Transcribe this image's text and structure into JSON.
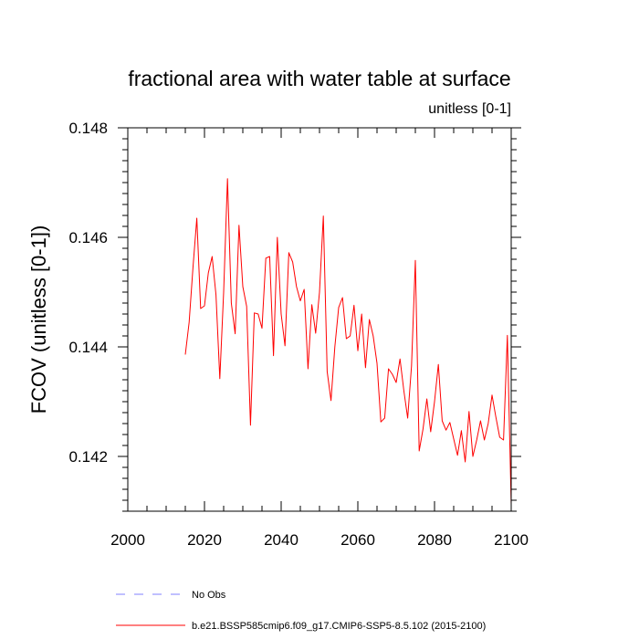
{
  "chart_data": {
    "type": "line",
    "title": "fractional area with water table at surface",
    "units_label": "unitless [0-1]",
    "xlabel": "",
    "ylabel": "FCOV  (unitless [0-1])",
    "xlim": [
      2000,
      2100
    ],
    "ylim": [
      0.141,
      0.148
    ],
    "x_ticks": [
      2000,
      2020,
      2040,
      2060,
      2080,
      2100
    ],
    "y_ticks": [
      0.142,
      0.144,
      0.146,
      0.148
    ],
    "x_tick_labels": [
      "2000",
      "2020",
      "2040",
      "2060",
      "2080",
      "2100"
    ],
    "y_tick_labels": [
      "0.142",
      "0.144",
      "0.146",
      "0.148"
    ],
    "grid": false,
    "legend_position": "bottom",
    "series": [
      {
        "name": "No Obs",
        "color": "#8080ff",
        "style": "dashed",
        "x": [],
        "values": []
      },
      {
        "name": "b.e21.BSSP585cmip6.f09_g17.CMIP6-SSP5-8.5.102 (2015-2100)",
        "color": "#ff0000",
        "style": "solid",
        "x": [
          2015,
          2016,
          2017,
          2018,
          2019,
          2020,
          2021,
          2022,
          2023,
          2024,
          2025,
          2026,
          2027,
          2028,
          2029,
          2030,
          2031,
          2032,
          2033,
          2034,
          2035,
          2036,
          2037,
          2038,
          2039,
          2040,
          2041,
          2042,
          2043,
          2044,
          2045,
          2046,
          2047,
          2048,
          2049,
          2050,
          2051,
          2052,
          2053,
          2054,
          2055,
          2056,
          2057,
          2058,
          2059,
          2060,
          2061,
          2062,
          2063,
          2064,
          2065,
          2066,
          2067,
          2068,
          2069,
          2070,
          2071,
          2072,
          2073,
          2074,
          2075,
          2076,
          2077,
          2078,
          2079,
          2080,
          2081,
          2082,
          2083,
          2084,
          2085,
          2086,
          2087,
          2088,
          2089,
          2090,
          2091,
          2092,
          2093,
          2094,
          2095,
          2096,
          2097,
          2098,
          2099,
          2100
        ],
        "values": [
          0.14386,
          0.14445,
          0.14545,
          0.14635,
          0.1447,
          0.14475,
          0.14535,
          0.14565,
          0.14495,
          0.14342,
          0.145,
          0.14707,
          0.1448,
          0.14424,
          0.14622,
          0.1451,
          0.14474,
          0.14257,
          0.14462,
          0.1446,
          0.14434,
          0.14562,
          0.14565,
          0.14384,
          0.146,
          0.1446,
          0.14402,
          0.14572,
          0.14555,
          0.1451,
          0.14484,
          0.14505,
          0.1436,
          0.14477,
          0.14425,
          0.145,
          0.14639,
          0.14355,
          0.14302,
          0.144,
          0.14472,
          0.1449,
          0.14415,
          0.1442,
          0.14476,
          0.14393,
          0.1446,
          0.14362,
          0.1445,
          0.1442,
          0.1437,
          0.14263,
          0.1427,
          0.1436,
          0.1435,
          0.14335,
          0.14378,
          0.1432,
          0.1427,
          0.14365,
          0.14558,
          0.1421,
          0.1425,
          0.14305,
          0.14245,
          0.143,
          0.14368,
          0.14265,
          0.14248,
          0.14262,
          0.14232,
          0.14202,
          0.14247,
          0.1419,
          0.14282,
          0.142,
          0.1423,
          0.14265,
          0.1423,
          0.1426,
          0.14312,
          0.14272,
          0.14235,
          0.1423,
          0.14421,
          0.14112
        ]
      }
    ]
  }
}
